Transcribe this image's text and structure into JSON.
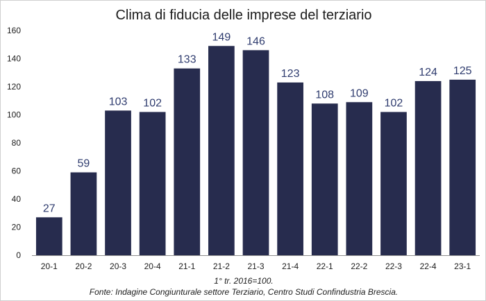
{
  "chart_data": {
    "type": "bar",
    "title": "Clima di fiducia delle imprese del terziario",
    "categories": [
      "20-1",
      "20-2",
      "20-3",
      "20-4",
      "21-1",
      "21-2",
      "21-3",
      "21-4",
      "22-1",
      "22-2",
      "22-3",
      "22-4",
      "23-1"
    ],
    "values": [
      27,
      59,
      103,
      102,
      133,
      149,
      146,
      123,
      108,
      109,
      102,
      124,
      125
    ],
    "ylim": [
      0,
      160
    ],
    "yticks": [
      0,
      20,
      40,
      60,
      80,
      100,
      120,
      140,
      160
    ],
    "grid": false,
    "legend": "none",
    "xlabel": "",
    "ylabel": ""
  },
  "footnotes": {
    "base": "1° tr. 2016=100.",
    "source": "Fonte: Indagine Congiunturale settore Terziario, Centro Studi Confindustria Brescia."
  },
  "colors": {
    "bar": "#272c4e",
    "value_label": "#2e3b6e",
    "axis": "#8c8c8c"
  }
}
